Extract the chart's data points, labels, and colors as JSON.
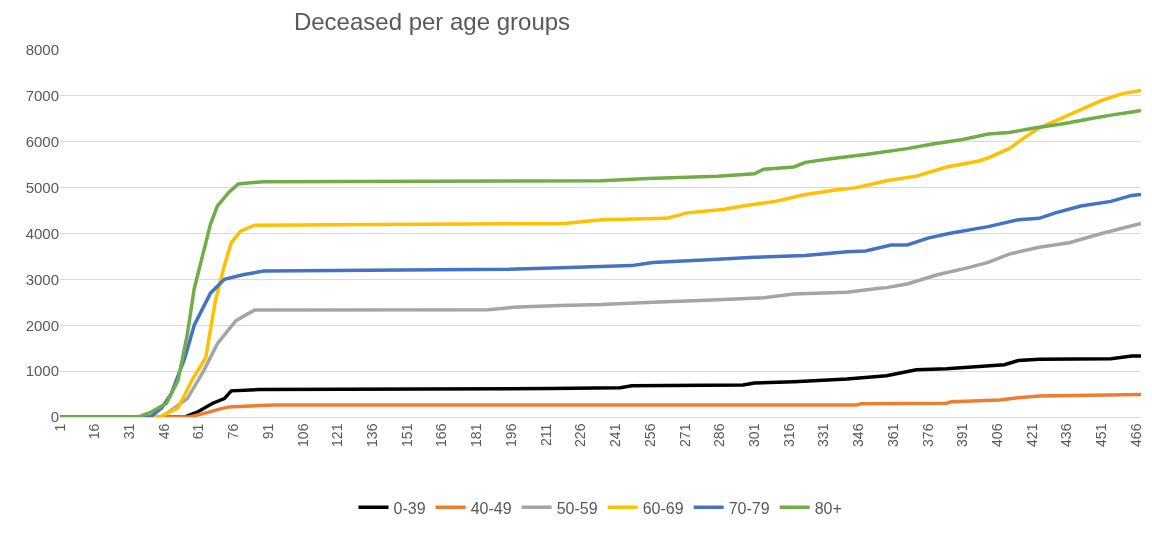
{
  "chart_data": {
    "type": "line",
    "title": "Deceased per age groups",
    "xlim": [
      1,
      468
    ],
    "xticks": [
      1,
      16,
      31,
      46,
      61,
      76,
      91,
      106,
      121,
      136,
      151,
      166,
      181,
      196,
      211,
      226,
      241,
      256,
      271,
      286,
      301,
      316,
      331,
      346,
      361,
      376,
      391,
      406,
      421,
      436,
      451,
      466
    ],
    "ylim": [
      0,
      8000
    ],
    "yticks": [
      0,
      1000,
      2000,
      3000,
      4000,
      5000,
      6000,
      7000,
      8000
    ],
    "grid": "y",
    "legend": "bottom",
    "marker": "none",
    "line_style": "solid",
    "series": [
      {
        "name": "0-39",
        "color": "#000000",
        "x": [
          1,
          55,
          60,
          67,
          72,
          75,
          87,
          213,
          243,
          248,
          296,
          301,
          318,
          341,
          358,
          371,
          384,
          398,
          409,
          415,
          424,
          455,
          464,
          468
        ],
        "values": [
          0,
          0,
          100,
          300,
          400,
          570,
          600,
          620,
          640,
          680,
          700,
          740,
          770,
          830,
          900,
          1030,
          1050,
          1100,
          1140,
          1230,
          1260,
          1270,
          1330,
          1330
        ]
      },
      {
        "name": "40-49",
        "color": "#ed7d31",
        "x": [
          1,
          57,
          65,
          69,
          74,
          83,
          94,
          345,
          347,
          384,
          386,
          407,
          415,
          424,
          468
        ],
        "values": [
          0,
          0,
          100,
          160,
          220,
          240,
          260,
          260,
          290,
          300,
          330,
          370,
          420,
          460,
          490
        ]
      },
      {
        "name": "50-59",
        "color": "#a5a5a5",
        "x": [
          1,
          45,
          56,
          63,
          69,
          77,
          85,
          186,
          199,
          217,
          235,
          257,
          283,
          305,
          318,
          341,
          354,
          358,
          367,
          380,
          393,
          402,
          411,
          424,
          437,
          451,
          468
        ],
        "values": [
          0,
          0,
          400,
          1000,
          1600,
          2100,
          2330,
          2340,
          2400,
          2430,
          2450,
          2500,
          2550,
          2600,
          2680,
          2720,
          2800,
          2820,
          2900,
          3100,
          3250,
          3370,
          3550,
          3700,
          3800,
          4000,
          4220
        ]
      },
      {
        "name": "60-69",
        "color": "#ffc000",
        "x": [
          1,
          44,
          52,
          58,
          64,
          68,
          72,
          75,
          79,
          85,
          157,
          219,
          235,
          263,
          272,
          288,
          296,
          310,
          323,
          336,
          345,
          358,
          371,
          384,
          398,
          402,
          411,
          418,
          424,
          433,
          442,
          451,
          460,
          468
        ],
        "values": [
          0,
          0,
          200,
          800,
          1300,
          2500,
          3300,
          3800,
          4050,
          4180,
          4200,
          4220,
          4300,
          4330,
          4450,
          4530,
          4600,
          4700,
          4850,
          4950,
          5000,
          5150,
          5250,
          5450,
          5580,
          5650,
          5850,
          6100,
          6300,
          6500,
          6700,
          6900,
          7050,
          7120
        ]
      },
      {
        "name": "70-79",
        "color": "#4472c4",
        "x": [
          1,
          40,
          45,
          49,
          55,
          59,
          66,
          72,
          80,
          89,
          195,
          221,
          248,
          257,
          279,
          301,
          323,
          341,
          349,
          360,
          367,
          376,
          385,
          402,
          415,
          424,
          431,
          442,
          455,
          464,
          468
        ],
        "values": [
          0,
          0,
          200,
          500,
          1300,
          2000,
          2700,
          3000,
          3100,
          3180,
          3220,
          3260,
          3300,
          3370,
          3420,
          3480,
          3520,
          3600,
          3620,
          3750,
          3750,
          3900,
          4000,
          4150,
          4300,
          4330,
          4450,
          4600,
          4700,
          4830,
          4850
        ]
      },
      {
        "name": "80+",
        "color": "#70ad47",
        "x": [
          1,
          35,
          40,
          47,
          52,
          56,
          59,
          63,
          66,
          69,
          74,
          78,
          89,
          235,
          255,
          285,
          301,
          305,
          318,
          323,
          334,
          349,
          367,
          378,
          391,
          402,
          411,
          422,
          435,
          446,
          455,
          464,
          468
        ],
        "values": [
          0,
          0,
          100,
          300,
          800,
          1800,
          2800,
          3600,
          4200,
          4600,
          4900,
          5080,
          5130,
          5150,
          5200,
          5250,
          5300,
          5400,
          5450,
          5550,
          5630,
          5720,
          5850,
          5950,
          6050,
          6170,
          6200,
          6300,
          6400,
          6500,
          6580,
          6650,
          6680
        ]
      }
    ]
  }
}
